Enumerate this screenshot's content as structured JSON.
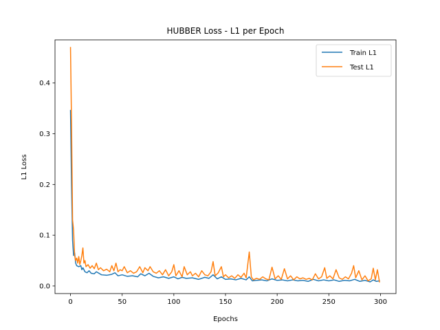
{
  "chart_data": {
    "type": "line",
    "title": "HUBBER Loss - L1 per Epoch",
    "xlabel": "Epochs",
    "ylabel": "L1 Loss",
    "xlim": [
      -15,
      315
    ],
    "ylim": [
      -0.015,
      0.485
    ],
    "xticks": [
      0,
      50,
      100,
      150,
      200,
      250,
      300
    ],
    "yticks": [
      0.0,
      0.1,
      0.2,
      0.3,
      0.4
    ],
    "ytick_labels": [
      "0.0",
      "0.1",
      "0.2",
      "0.3",
      "0.4"
    ],
    "grid": false,
    "legend_position": "top-right",
    "series": [
      {
        "name": "Train L1",
        "color": "#1f77b4",
        "points": [
          [
            0,
            0.346
          ],
          [
            1,
            0.2
          ],
          [
            2,
            0.09
          ],
          [
            3,
            0.06
          ],
          [
            4,
            0.065
          ],
          [
            5,
            0.045
          ],
          [
            6,
            0.04
          ],
          [
            8,
            0.038
          ],
          [
            10,
            0.04
          ],
          [
            11,
            0.032
          ],
          [
            12,
            0.036
          ],
          [
            14,
            0.028
          ],
          [
            16,
            0.026
          ],
          [
            18,
            0.03
          ],
          [
            20,
            0.025
          ],
          [
            23,
            0.024
          ],
          [
            25,
            0.028
          ],
          [
            30,
            0.022
          ],
          [
            35,
            0.021
          ],
          [
            40,
            0.023
          ],
          [
            43,
            0.026
          ],
          [
            46,
            0.02
          ],
          [
            50,
            0.022
          ],
          [
            55,
            0.019
          ],
          [
            60,
            0.02
          ],
          [
            65,
            0.018
          ],
          [
            68,
            0.024
          ],
          [
            72,
            0.02
          ],
          [
            76,
            0.025
          ],
          [
            80,
            0.019
          ],
          [
            85,
            0.016
          ],
          [
            90,
            0.018
          ],
          [
            95,
            0.015
          ],
          [
            100,
            0.018
          ],
          [
            104,
            0.014
          ],
          [
            108,
            0.017
          ],
          [
            112,
            0.015
          ],
          [
            118,
            0.016
          ],
          [
            124,
            0.013
          ],
          [
            130,
            0.017
          ],
          [
            134,
            0.015
          ],
          [
            138,
            0.022
          ],
          [
            142,
            0.014
          ],
          [
            146,
            0.018
          ],
          [
            150,
            0.013
          ],
          [
            155,
            0.014
          ],
          [
            160,
            0.012
          ],
          [
            165,
            0.015
          ],
          [
            170,
            0.012
          ],
          [
            173,
            0.018
          ],
          [
            176,
            0.01
          ],
          [
            180,
            0.011
          ],
          [
            185,
            0.012
          ],
          [
            190,
            0.01
          ],
          [
            195,
            0.014
          ],
          [
            200,
            0.011
          ],
          [
            205,
            0.012
          ],
          [
            210,
            0.01
          ],
          [
            215,
            0.012
          ],
          [
            220,
            0.01
          ],
          [
            225,
            0.011
          ],
          [
            230,
            0.009
          ],
          [
            235,
            0.013
          ],
          [
            240,
            0.01
          ],
          [
            245,
            0.012
          ],
          [
            250,
            0.01
          ],
          [
            255,
            0.012
          ],
          [
            260,
            0.009
          ],
          [
            265,
            0.011
          ],
          [
            270,
            0.01
          ],
          [
            275,
            0.013
          ],
          [
            280,
            0.009
          ],
          [
            285,
            0.011
          ],
          [
            290,
            0.008
          ],
          [
            293,
            0.012
          ],
          [
            296,
            0.009
          ],
          [
            299,
            0.01
          ]
        ]
      },
      {
        "name": "Test L1",
        "color": "#ff7f0e",
        "points": [
          [
            0,
            0.47
          ],
          [
            1,
            0.32
          ],
          [
            2,
            0.13
          ],
          [
            3,
            0.11
          ],
          [
            4,
            0.06
          ],
          [
            5,
            0.05
          ],
          [
            6,
            0.055
          ],
          [
            7,
            0.045
          ],
          [
            8,
            0.058
          ],
          [
            9,
            0.042
          ],
          [
            10,
            0.05
          ],
          [
            11,
            0.06
          ],
          [
            12,
            0.075
          ],
          [
            13,
            0.045
          ],
          [
            14,
            0.05
          ],
          [
            15,
            0.038
          ],
          [
            17,
            0.042
          ],
          [
            19,
            0.035
          ],
          [
            21,
            0.04
          ],
          [
            23,
            0.034
          ],
          [
            25,
            0.045
          ],
          [
            27,
            0.032
          ],
          [
            29,
            0.036
          ],
          [
            32,
            0.03
          ],
          [
            35,
            0.033
          ],
          [
            38,
            0.028
          ],
          [
            40,
            0.04
          ],
          [
            42,
            0.03
          ],
          [
            44,
            0.045
          ],
          [
            46,
            0.028
          ],
          [
            48,
            0.032
          ],
          [
            50,
            0.03
          ],
          [
            52,
            0.038
          ],
          [
            55,
            0.026
          ],
          [
            58,
            0.03
          ],
          [
            61,
            0.025
          ],
          [
            64,
            0.028
          ],
          [
            67,
            0.038
          ],
          [
            70,
            0.026
          ],
          [
            72,
            0.036
          ],
          [
            75,
            0.03
          ],
          [
            77,
            0.038
          ],
          [
            80,
            0.028
          ],
          [
            83,
            0.025
          ],
          [
            86,
            0.03
          ],
          [
            89,
            0.022
          ],
          [
            92,
            0.032
          ],
          [
            95,
            0.02
          ],
          [
            98,
            0.028
          ],
          [
            100,
            0.042
          ],
          [
            102,
            0.02
          ],
          [
            105,
            0.03
          ],
          [
            108,
            0.018
          ],
          [
            110,
            0.038
          ],
          [
            113,
            0.022
          ],
          [
            116,
            0.028
          ],
          [
            118,
            0.02
          ],
          [
            121,
            0.025
          ],
          [
            124,
            0.018
          ],
          [
            127,
            0.03
          ],
          [
            130,
            0.022
          ],
          [
            133,
            0.02
          ],
          [
            136,
            0.028
          ],
          [
            138,
            0.048
          ],
          [
            140,
            0.02
          ],
          [
            143,
            0.026
          ],
          [
            146,
            0.038
          ],
          [
            148,
            0.018
          ],
          [
            150,
            0.022
          ],
          [
            153,
            0.016
          ],
          [
            156,
            0.02
          ],
          [
            159,
            0.015
          ],
          [
            162,
            0.022
          ],
          [
            165,
            0.017
          ],
          [
            168,
            0.025
          ],
          [
            170,
            0.016
          ],
          [
            173,
            0.067
          ],
          [
            175,
            0.018
          ],
          [
            177,
            0.012
          ],
          [
            180,
            0.015
          ],
          [
            183,
            0.013
          ],
          [
            186,
            0.018
          ],
          [
            189,
            0.014
          ],
          [
            192,
            0.012
          ],
          [
            195,
            0.037
          ],
          [
            198,
            0.014
          ],
          [
            201,
            0.02
          ],
          [
            204,
            0.013
          ],
          [
            207,
            0.034
          ],
          [
            210,
            0.014
          ],
          [
            213,
            0.02
          ],
          [
            216,
            0.012
          ],
          [
            219,
            0.018
          ],
          [
            222,
            0.014
          ],
          [
            225,
            0.016
          ],
          [
            228,
            0.013
          ],
          [
            231,
            0.015
          ],
          [
            234,
            0.012
          ],
          [
            237,
            0.024
          ],
          [
            240,
            0.014
          ],
          [
            243,
            0.018
          ],
          [
            246,
            0.036
          ],
          [
            248,
            0.015
          ],
          [
            251,
            0.02
          ],
          [
            254,
            0.014
          ],
          [
            257,
            0.032
          ],
          [
            260,
            0.016
          ],
          [
            263,
            0.013
          ],
          [
            266,
            0.018
          ],
          [
            269,
            0.014
          ],
          [
            272,
            0.025
          ],
          [
            274,
            0.04
          ],
          [
            276,
            0.016
          ],
          [
            279,
            0.03
          ],
          [
            282,
            0.012
          ],
          [
            285,
            0.02
          ],
          [
            288,
            0.01
          ],
          [
            291,
            0.014
          ],
          [
            293,
            0.035
          ],
          [
            295,
            0.012
          ],
          [
            297,
            0.032
          ],
          [
            299,
            0.008
          ]
        ]
      }
    ]
  }
}
